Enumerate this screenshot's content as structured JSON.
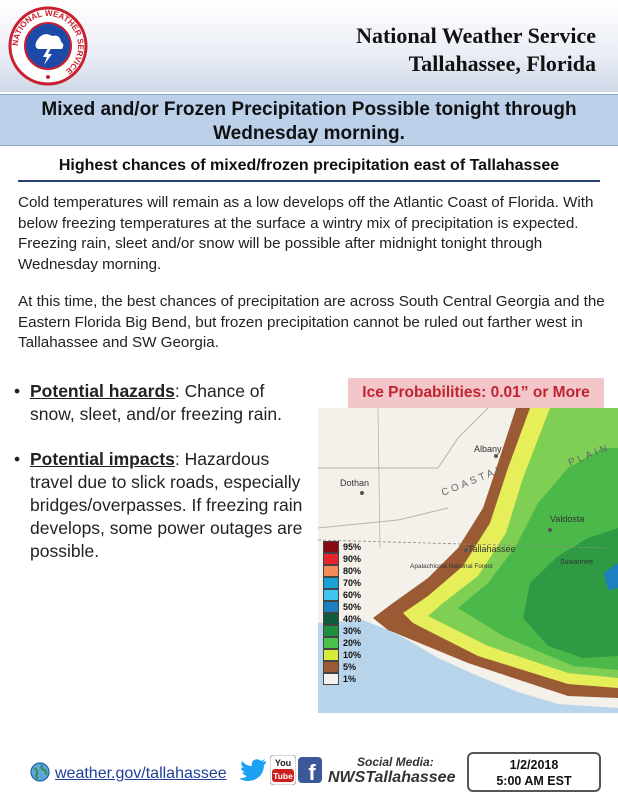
{
  "header": {
    "logo_text": "NATIONAL WEATHER SERVICE",
    "office_line1": "National Weather Service",
    "office_line2": "Tallahassee, Florida"
  },
  "headline": {
    "line1": "Mixed and/or Frozen Precipitation Possible tonight through",
    "line2": "Wednesday morning."
  },
  "subheading": "Highest chances of mixed/frozen precipitation east of Tallahassee",
  "paragraphs": [
    "Cold temperatures will remain as a low develops off the Atlantic Coast of Florida. With below freezing temperatures at the surface a wintry mix of precipitation is expected. Freezing rain, sleet and/or snow will be possible after midnight tonight through Wednesday morning.",
    "At this time, the best chances of precipitation are across South Central Georgia and the Eastern Florida Big Bend, but frozen precipitation cannot be ruled out farther west in Tallahassee and SW Georgia."
  ],
  "bullets": [
    {
      "label": "Potential hazards",
      "text": ": Chance of snow, sleet, and/or freezing rain."
    },
    {
      "label": "Potential impacts",
      "text": ": Hazardous travel due to slick roads, especially bridges/overpasses. If freezing rain develops, some power outages are possible."
    }
  ],
  "map": {
    "title": "Ice Probabilities: 0.01” or More",
    "places": {
      "albany": "Albany",
      "dothan": "Dothan",
      "valdosta": "Valdosta",
      "tallahassee": "Tallahassee",
      "suwannee": "Suwannee",
      "forest": "Apalachicola National Forest",
      "coastal": "COASTAL",
      "plain": "PLAIN"
    },
    "legend": [
      {
        "label": "95%",
        "color": "#8b0a12"
      },
      {
        "label": "90%",
        "color": "#e8242a"
      },
      {
        "label": "80%",
        "color": "#f48a5a"
      },
      {
        "label": "70%",
        "color": "#1ba3d8"
      },
      {
        "label": "60%",
        "color": "#3fc6f0"
      },
      {
        "label": "50%",
        "color": "#1c7fbf"
      },
      {
        "label": "40%",
        "color": "#0e5c3a"
      },
      {
        "label": "30%",
        "color": "#1c8f3e"
      },
      {
        "label": "20%",
        "color": "#4bc04a"
      },
      {
        "label": "10%",
        "color": "#d8ea3a"
      },
      {
        "label": "5%",
        "color": "#9a5b34"
      },
      {
        "label": "1%",
        "color": "#f2f2f2"
      }
    ]
  },
  "footer": {
    "website": "weather.gov/tallahassee",
    "social_label": "Social Media:",
    "social_handle": "NWSTallahassee",
    "date": "1/2/2018",
    "time": "5:00 AM EST",
    "youtube_text": "You Tube",
    "facebook_text": "f"
  },
  "colors": {
    "banner": "#bdd0ea",
    "map_title_bg": "#f3c6c9",
    "map_title_text": "#c0242f",
    "link": "#1f3f99"
  }
}
